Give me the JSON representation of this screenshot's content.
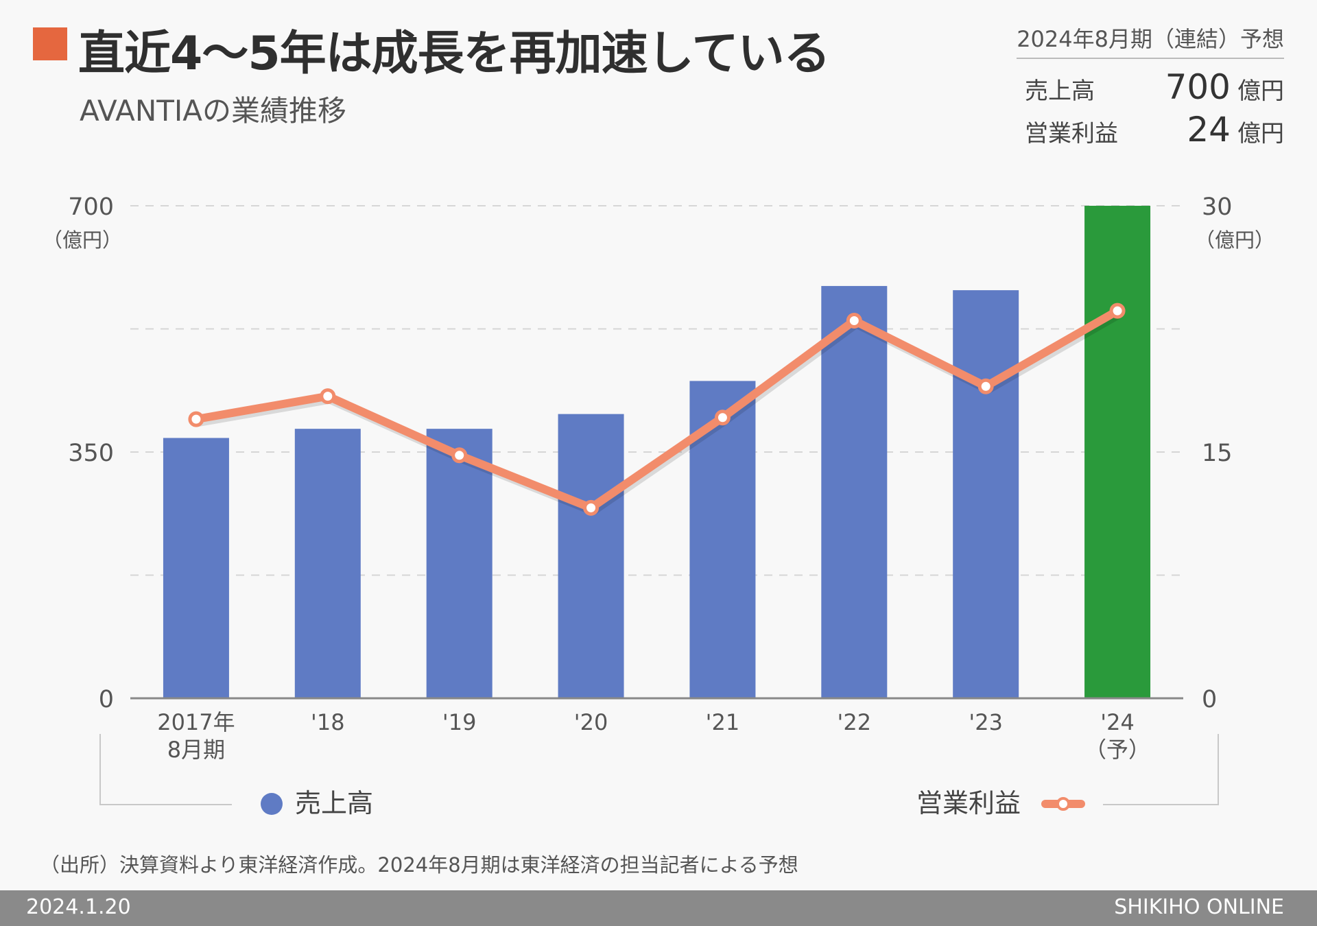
{
  "header": {
    "title": "直近4〜5年は成長を再加速している",
    "subtitle": "AVANTIAの業績推移"
  },
  "forecast": {
    "period": "2024年8月期（連結）予想",
    "rows": [
      {
        "label": "売上高",
        "value": "700",
        "unit": "億円"
      },
      {
        "label": "営業利益",
        "value": "24",
        "unit": "億円"
      }
    ]
  },
  "chart_data": {
    "type": "bar+line",
    "categories": [
      "2017年\n8月期",
      "'18",
      "'19",
      "'20",
      "'21",
      "'22",
      "'23",
      "'24\n（予）"
    ],
    "series": [
      {
        "name": "売上高",
        "axis": "left",
        "type": "bar",
        "values": [
          370,
          383,
          383,
          404,
          451,
          586,
          580,
          700
        ],
        "colors": [
          "#5f7bc4",
          "#5f7bc4",
          "#5f7bc4",
          "#5f7bc4",
          "#5f7bc4",
          "#5f7bc4",
          "#5f7bc4",
          "#2a9a3b"
        ]
      },
      {
        "name": "営業利益",
        "axis": "right",
        "type": "line",
        "color": "#f28c6b",
        "values": [
          17,
          18.4,
          14.8,
          11.6,
          17.1,
          23,
          19,
          23.6
        ]
      }
    ],
    "left_axis": {
      "ticks": [
        "700",
        "350",
        "0"
      ],
      "unit": "（億円）",
      "ylim": [
        0,
        700
      ]
    },
    "right_axis": {
      "ticks": [
        "30",
        "15",
        "0"
      ],
      "unit": "（億円）",
      "ylim": [
        0,
        30
      ]
    },
    "gridlines": [
      0,
      175,
      350,
      525,
      700
    ],
    "legend": [
      {
        "name": "売上高",
        "symbol": "circle",
        "color": "#5f7bc4"
      },
      {
        "name": "営業利益",
        "symbol": "line-marker",
        "color": "#f28c6b"
      }
    ]
  },
  "footer": {
    "source": "（出所）決算資料より東洋経済作成。2024年8月期は東洋経済の担当記者による予想",
    "date": "2024.1.20",
    "brand": "SHIKIHO ONLINE"
  }
}
